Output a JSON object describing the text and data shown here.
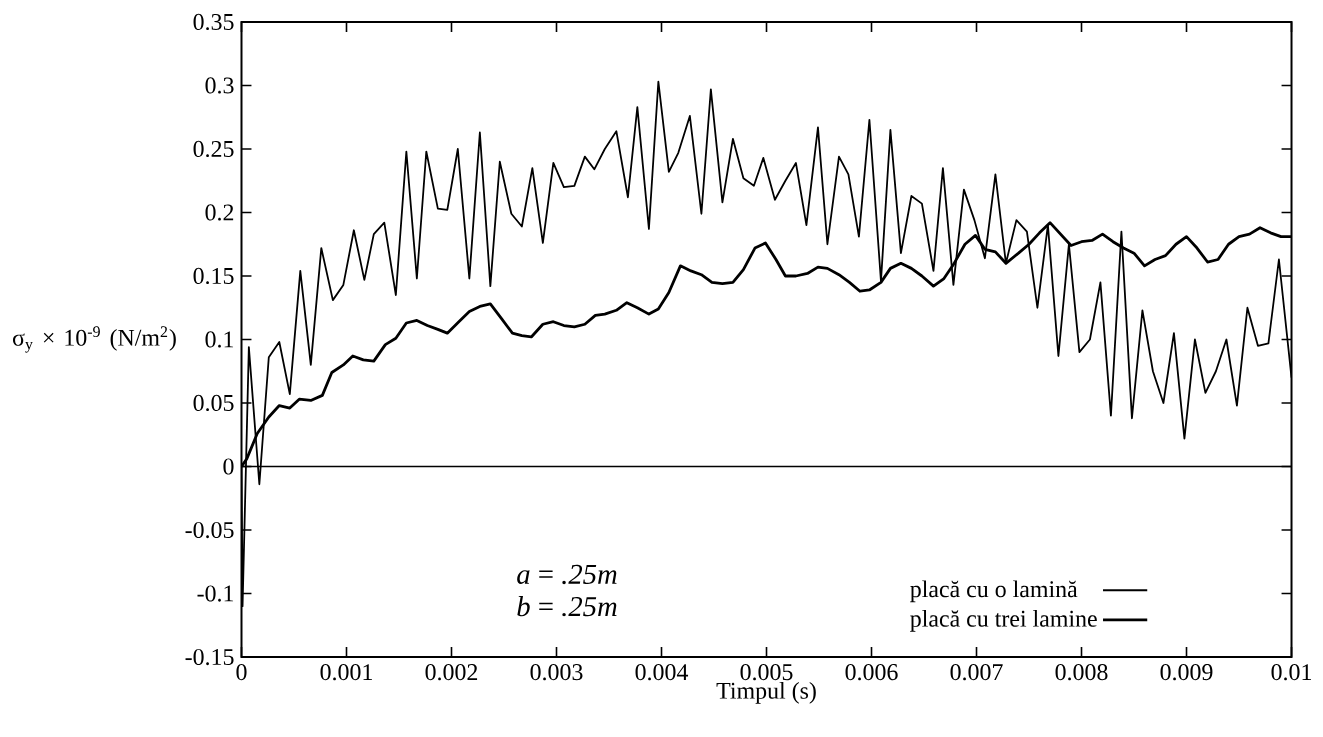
{
  "chart_data": {
    "type": "line",
    "xlabel": "Timpul (s)",
    "ylabel": "σ$_{y}$ × 10$^{-9}$ (N/m$^{2}$)",
    "xlim": [
      0,
      0.01
    ],
    "ylim": [
      -0.15,
      0.35
    ],
    "xticks": [
      0,
      0.001,
      0.002,
      0.003,
      0.004,
      0.005,
      0.006,
      0.007,
      0.008,
      0.009,
      0.01
    ],
    "yticks": [
      -0.15,
      -0.1,
      -0.05,
      0,
      0.05,
      0.1,
      0.15,
      0.2,
      0.25,
      0.3,
      0.35
    ],
    "grid": false,
    "legend": "bottom right",
    "marker": "none",
    "line_style": "solid",
    "ref_lines": [
      {
        "axis": "y",
        "value": 0,
        "color": "#000000"
      }
    ],
    "annotations": [
      "*a* = *.25m*",
      "*b* = *.25m*"
    ],
    "series": [
      {
        "name": "placă cu o lamină",
        "color": "#000000",
        "x": [
          0,
          1e-05,
          7e-05,
          0.00017,
          0.00026,
          0.00036,
          0.00046,
          0.00056,
          0.00066,
          0.00076,
          0.00087,
          0.00097,
          0.00107,
          0.00117,
          0.00126,
          0.00136,
          0.00147,
          0.00157,
          0.00167,
          0.00176,
          0.00187,
          0.00196,
          0.00206,
          0.00217,
          0.00227,
          0.00237,
          0.00246,
          0.00257,
          0.00267,
          0.00277,
          0.00287,
          0.00297,
          0.00307,
          0.00317,
          0.00327,
          0.00336,
          0.00346,
          0.00357,
          0.00368,
          0.00377,
          0.00388,
          0.00397,
          0.00407,
          0.00416,
          0.00427,
          0.00438,
          0.00447,
          0.00458,
          0.00468,
          0.00478,
          0.00488,
          0.00497,
          0.00508,
          0.00518,
          0.00528,
          0.00538,
          0.00549,
          0.00558,
          0.00569,
          0.00578,
          0.00588,
          0.00598,
          0.00609,
          0.00618,
          0.00628,
          0.00638,
          0.00648,
          0.00659,
          0.00668,
          0.00678,
          0.00688,
          0.00698,
          0.00708,
          0.00718,
          0.00728,
          0.00738,
          0.00748,
          0.00758,
          0.00768,
          0.00778,
          0.00788,
          0.00798,
          0.00808,
          0.00818,
          0.00828,
          0.00838,
          0.00848,
          0.00858,
          0.00868,
          0.00878,
          0.00888,
          0.00898,
          0.00908,
          0.00918,
          0.00928,
          0.00938,
          0.00948,
          0.00958,
          0.00968,
          0.00978,
          0.00988,
          0.01
        ],
        "values": [
          0,
          -0.11,
          0.094,
          -0.014,
          0.086,
          0.098,
          0.057,
          0.154,
          0.08,
          0.172,
          0.131,
          0.143,
          0.186,
          0.147,
          0.183,
          0.192,
          0.135,
          0.248,
          0.148,
          0.248,
          0.203,
          0.202,
          0.25,
          0.148,
          0.263,
          0.142,
          0.24,
          0.199,
          0.189,
          0.235,
          0.176,
          0.239,
          0.22,
          0.221,
          0.244,
          0.234,
          0.25,
          0.264,
          0.212,
          0.283,
          0.187,
          0.303,
          0.232,
          0.247,
          0.276,
          0.199,
          0.297,
          0.208,
          0.258,
          0.227,
          0.221,
          0.243,
          0.21,
          0.225,
          0.239,
          0.19,
          0.267,
          0.175,
          0.244,
          0.23,
          0.181,
          0.273,
          0.146,
          0.265,
          0.168,
          0.213,
          0.207,
          0.154,
          0.235,
          0.143,
          0.218,
          0.194,
          0.164,
          0.23,
          0.16,
          0.194,
          0.185,
          0.125,
          0.19,
          0.087,
          0.175,
          0.09,
          0.1,
          0.145,
          0.04,
          0.185,
          0.038,
          0.123,
          0.075,
          0.05,
          0.105,
          0.022,
          0.1,
          0.058,
          0.075,
          0.1,
          0.048,
          0.125,
          0.095,
          0.097,
          0.163,
          0.07
        ]
      },
      {
        "name": "placă cu trei lamine",
        "color": "#000000",
        "x": [
          0,
          5e-05,
          0.00015,
          0.00026,
          0.00036,
          0.00046,
          0.00055,
          0.00066,
          0.00077,
          0.00086,
          0.00097,
          0.00106,
          0.00116,
          0.00126,
          0.00137,
          0.00147,
          0.00157,
          0.00167,
          0.00177,
          0.00187,
          0.00196,
          0.00207,
          0.00217,
          0.00227,
          0.00237,
          0.00248,
          0.00258,
          0.00267,
          0.00276,
          0.00287,
          0.00297,
          0.00307,
          0.00317,
          0.00327,
          0.00337,
          0.00346,
          0.00357,
          0.00367,
          0.00377,
          0.00388,
          0.00397,
          0.00407,
          0.00418,
          0.00428,
          0.00438,
          0.00448,
          0.00458,
          0.00468,
          0.00478,
          0.00489,
          0.00499,
          0.00509,
          0.00518,
          0.00528,
          0.00539,
          0.00549,
          0.00558,
          0.00569,
          0.00579,
          0.00589,
          0.00598,
          0.00609,
          0.00618,
          0.00628,
          0.00638,
          0.00648,
          0.00659,
          0.00669,
          0.00678,
          0.00689,
          0.00699,
          0.00708,
          0.00718,
          0.00728,
          0.0074,
          0.0075,
          0.0076,
          0.0077,
          0.0078,
          0.0079,
          0.008,
          0.0081,
          0.0082,
          0.0083,
          0.0084,
          0.0085,
          0.0086,
          0.0087,
          0.0088,
          0.0089,
          0.009,
          0.0091,
          0.0092,
          0.0093,
          0.0094,
          0.0095,
          0.0096,
          0.0097,
          0.0098,
          0.0099,
          0.01
        ],
        "values": [
          0,
          0.006,
          0.026,
          0.039,
          0.048,
          0.046,
          0.053,
          0.052,
          0.056,
          0.074,
          0.08,
          0.087,
          0.084,
          0.083,
          0.096,
          0.101,
          0.113,
          0.115,
          0.111,
          0.108,
          0.105,
          0.114,
          0.122,
          0.126,
          0.128,
          0.116,
          0.105,
          0.103,
          0.102,
          0.112,
          0.114,
          0.111,
          0.11,
          0.112,
          0.119,
          0.12,
          0.123,
          0.129,
          0.125,
          0.12,
          0.124,
          0.137,
          0.158,
          0.154,
          0.151,
          0.145,
          0.144,
          0.145,
          0.155,
          0.172,
          0.176,
          0.163,
          0.15,
          0.15,
          0.152,
          0.157,
          0.156,
          0.151,
          0.145,
          0.138,
          0.139,
          0.145,
          0.156,
          0.16,
          0.156,
          0.15,
          0.142,
          0.148,
          0.159,
          0.175,
          0.182,
          0.171,
          0.169,
          0.16,
          0.168,
          0.175,
          0.184,
          0.192,
          0.183,
          0.174,
          0.177,
          0.178,
          0.183,
          0.177,
          0.172,
          0.168,
          0.158,
          0.163,
          0.166,
          0.175,
          0.181,
          0.172,
          0.161,
          0.163,
          0.175,
          0.181,
          0.183,
          0.188,
          0.184,
          0.181,
          0.181
        ]
      }
    ]
  }
}
